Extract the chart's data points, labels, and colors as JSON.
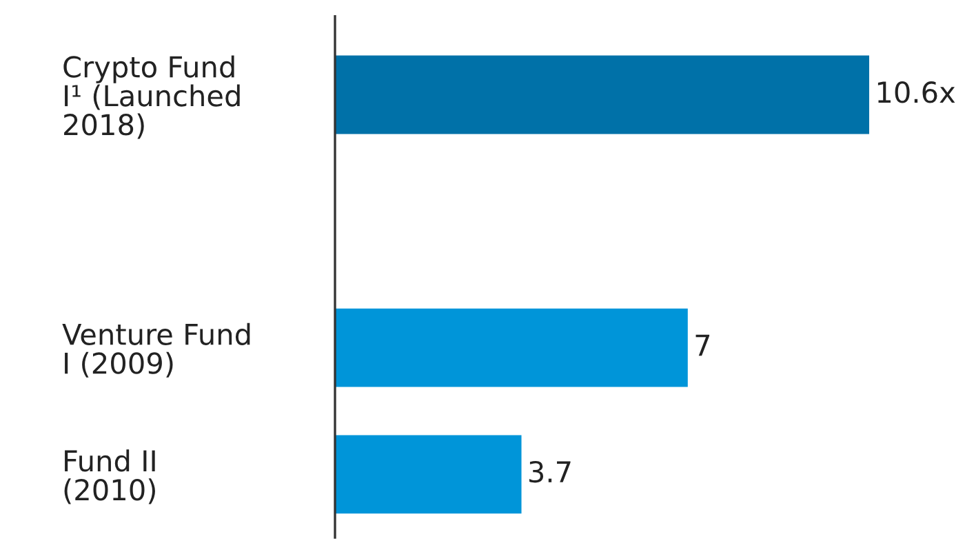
{
  "chart_data": {
    "type": "bar",
    "orientation": "horizontal",
    "categories": [
      "Crypto Fund\nI¹ (Launched\n2018)",
      null,
      "Venture Fund\nI (2009)",
      "Fund II\n(2010)"
    ],
    "values": [
      10.6,
      null,
      7,
      3.7
    ],
    "colors": [
      "#0071a8",
      "#0095d9",
      "#0095d9",
      "#0095d9"
    ],
    "value_labels": [
      "10.6x",
      null,
      "7",
      "3.7"
    ],
    "grid": false,
    "legend": false,
    "tick_labels": "y"
  }
}
